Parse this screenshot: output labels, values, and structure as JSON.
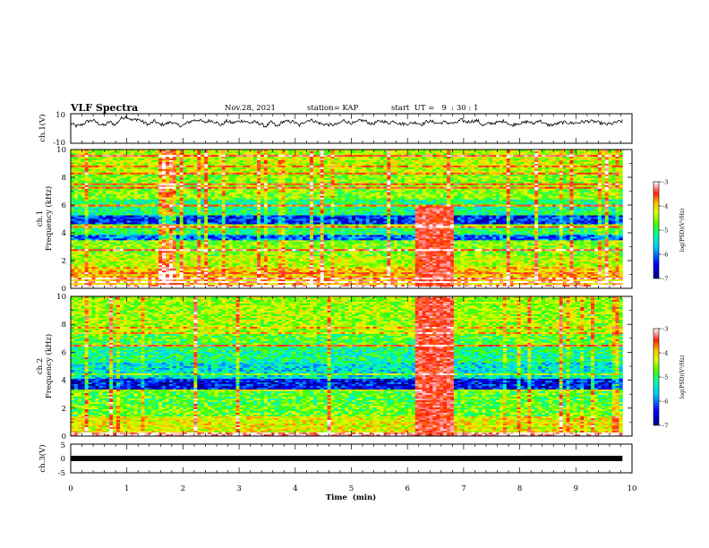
{
  "header": {
    "title": "VLF Spectra",
    "date": "Nov.28, 2021",
    "station": "station= KAP",
    "start": "start  UT =   9  : 30 : 1"
  },
  "chart_data": [
    {
      "type": "line",
      "panel": "ch1-waveform",
      "ylabel": "ch.1(V)",
      "ylim": [
        -10,
        10
      ],
      "yticks": [
        "10",
        "-10"
      ],
      "x_range_min": [
        0,
        9.83
      ],
      "series": [
        {
          "values": [
            3.5,
            1.6,
            2.5,
            4.8,
            5.6,
            3.3,
            2.0,
            4.6,
            2.4,
            6.8,
            8.2,
            5.5,
            6.4,
            4.3,
            2.6,
            5.1,
            2.7,
            2.9,
            4.6,
            2.5,
            1.8,
            4.0,
            5.5,
            5.8,
            4.0,
            5.5,
            4.5,
            2.1,
            5.2,
            3.7,
            4.7,
            5.4,
            3.8,
            4.4,
            3.3,
            1.3,
            4.5,
            1.1,
            4.6,
            4.7,
            4.6,
            2.0,
            4.8,
            5.9,
            4.6,
            3.1,
            2.7,
            2.4,
            3.0,
            5.6,
            3.8,
            3.5,
            5.7,
            4.8,
            2.9,
            4.4,
            5.1,
            3.5,
            5.2,
            3.2,
            3.1,
            3.6,
            4.1,
            2.7,
            5.0,
            4.5,
            3.4,
            4.4,
            3.6,
            3.5,
            5.8,
            4.4,
            4.9,
            5.3,
            1.9,
            3.4,
            3.7,
            4.4,
            5.2,
            1.8,
            3.5,
            3.5,
            4.8,
            3.2,
            5.7,
            3.2,
            2.2,
            2.9,
            4.0,
            4.1,
            3.6,
            3.9,
            4.6,
            4.9,
            4.7,
            3.8,
            2.9,
            3.1,
            4.3,
            5.0
          ]
        }
      ]
    },
    {
      "type": "heatmap",
      "panel": "ch1-spectrogram",
      "ylabel": "ch.1\nFrequency (kHz)",
      "yticks": [
        "0",
        "2",
        "4",
        "6",
        "8",
        "10"
      ],
      "ylim_khz": [
        0,
        10
      ],
      "x_range_min": [
        0,
        9.83
      ],
      "colorbar": {
        "label": "log(PSD)(V²/Hz)",
        "ticks": [
          "-3",
          "-4",
          "-5",
          "-6",
          "-7"
        ],
        "range": [
          -7,
          -3
        ]
      },
      "bands_khz": [
        {
          "from": 0,
          "to": 0.3,
          "psd": -3.2
        },
        {
          "from": 0.3,
          "to": 1.5,
          "psd": -4.4
        },
        {
          "from": 1.5,
          "to": 2.3,
          "psd": -4.8
        },
        {
          "from": 2.3,
          "to": 3.4,
          "psd": -5.0
        },
        {
          "from": 3.4,
          "to": 3.8,
          "psd": -6.3
        },
        {
          "from": 3.8,
          "to": 4.6,
          "psd": -5.4
        },
        {
          "from": 4.6,
          "to": 5.3,
          "psd": -6.5
        },
        {
          "from": 5.3,
          "to": 6.4,
          "psd": -5.5
        },
        {
          "from": 6.4,
          "to": 8.3,
          "psd": -5.0
        },
        {
          "from": 8.3,
          "to": 10,
          "psd": -4.8
        }
      ],
      "burst": {
        "start_min": 6.15,
        "end_min": 6.8,
        "max_khz": 5.9,
        "psd": -3.6
      }
    },
    {
      "type": "heatmap",
      "panel": "ch2-spectrogram",
      "ylabel": "ch.2\nFrequency (kHz)",
      "yticks": [
        "0",
        "2",
        "4",
        "6",
        "8",
        "10"
      ],
      "ylim_khz": [
        0,
        10
      ],
      "x_range_min": [
        0,
        9.83
      ],
      "colorbar": {
        "label": "log(PSD)(V²/Hz)",
        "ticks": [
          "-3",
          "-4",
          "-5",
          "-6",
          "-7"
        ],
        "range": [
          -7,
          -3
        ]
      },
      "bands_khz": [
        {
          "from": 0,
          "to": 0.3,
          "psd": -3.2
        },
        {
          "from": 0.3,
          "to": 1.4,
          "psd": -4.6
        },
        {
          "from": 1.4,
          "to": 2.2,
          "psd": -5.1
        },
        {
          "from": 2.2,
          "to": 3.3,
          "psd": -5.2
        },
        {
          "from": 3.3,
          "to": 4.1,
          "psd": -6.6
        },
        {
          "from": 4.1,
          "to": 5.3,
          "psd": -5.8
        },
        {
          "from": 5.3,
          "to": 6.4,
          "psd": -5.5
        },
        {
          "from": 6.4,
          "to": 7.4,
          "psd": -5.2
        },
        {
          "from": 7.4,
          "to": 10,
          "psd": -4.9
        }
      ],
      "burst": {
        "start_min": 6.15,
        "end_min": 6.8,
        "max_khz": 10,
        "psd": -3.6
      }
    },
    {
      "type": "line",
      "panel": "ch3-waveform",
      "ylabel": "ch.3(V)",
      "ylim": [
        -5,
        5
      ],
      "yticks": [
        "5",
        "0",
        "-5"
      ],
      "x_range_min": [
        0,
        9.83
      ],
      "series": [
        {
          "values": [
            0,
            0
          ]
        }
      ]
    }
  ],
  "x_axis": {
    "label": "Time  (min)",
    "ticks": [
      "0",
      "1",
      "2",
      "3",
      "4",
      "5",
      "6",
      "7",
      "8",
      "9",
      "10"
    ],
    "range": [
      0,
      10
    ]
  },
  "colors": {
    "scale": [
      "#00008c",
      "#0000ff",
      "#00a0ff",
      "#00ffff",
      "#40ff60",
      "#c8ff00",
      "#ffd000",
      "#ff4000",
      "#ff0000",
      "#ffffff"
    ]
  }
}
